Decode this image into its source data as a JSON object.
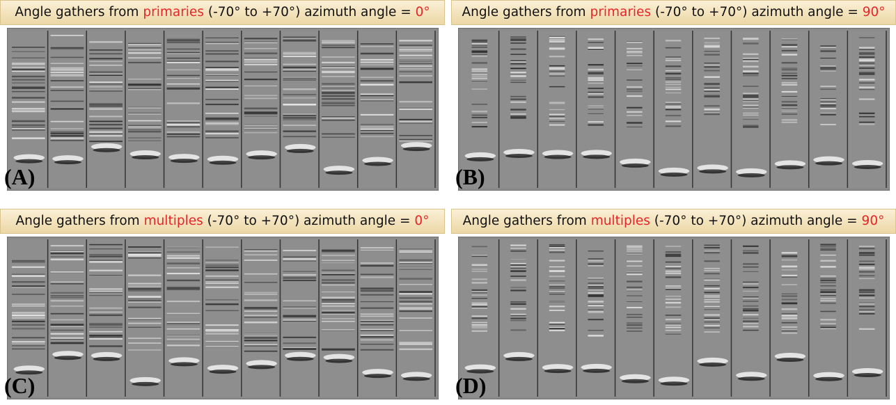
{
  "panels": [
    {
      "title": {
        "prefix": "Angle gathers from ",
        "highlight": "primaries",
        "middle": " (-70° to +70°) azimuth angle = ",
        "angle": "0°"
      },
      "label": "(A)"
    },
    {
      "title": {
        "prefix": "Angle gathers from ",
        "highlight": "primaries",
        "middle": " (-70° to +70°) azimuth angle = ",
        "angle": "90°"
      },
      "label": "(B)"
    },
    {
      "title": {
        "prefix": "Angle gathers from ",
        "highlight": "multiples",
        "middle": " (-70° to +70°) azimuth angle = ",
        "angle": "0°"
      },
      "label": "(C)"
    },
    {
      "title": {
        "prefix": "Angle gathers from ",
        "highlight": "multiples",
        "middle": " (-70° to +70°) azimuth angle = ",
        "angle": "90°"
      },
      "label": "(D)"
    }
  ]
}
